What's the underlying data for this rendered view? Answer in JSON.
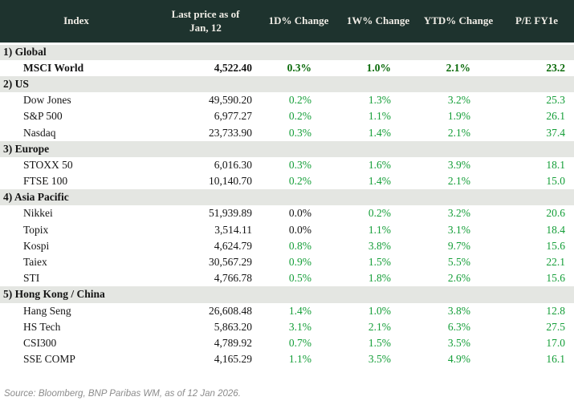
{
  "colors": {
    "header_bg": "#1e332e",
    "header_text": "#f0ede6",
    "section_bg": "#e4e6e2",
    "positive": "#149e38",
    "positive_bold": "#0a6a0a",
    "neutral": "#141414",
    "source_text": "#8c8c8c"
  },
  "chart_data": {
    "type": "table",
    "columns": [
      "Index",
      "Last price as of\nJan, 12",
      "1D% Change",
      "1W% Change",
      "YTD% Change",
      "P/E FY1e"
    ],
    "sections": [
      {
        "label": "1) Global",
        "rows": [
          {
            "index": "MSCI World",
            "last_price": "4,522.40",
            "d1_change": "0.3%",
            "w1_change": "1.0%",
            "ytd_change": "2.1%",
            "pe_fy1e": "23.2",
            "emphasis": true,
            "neutral_cells": []
          }
        ]
      },
      {
        "label": "2) US",
        "rows": [
          {
            "index": "Dow Jones",
            "last_price": "49,590.20",
            "d1_change": "0.2%",
            "w1_change": "1.3%",
            "ytd_change": "3.2%",
            "pe_fy1e": "25.3",
            "emphasis": false,
            "neutral_cells": []
          },
          {
            "index": "S&P 500",
            "last_price": "6,977.27",
            "d1_change": "0.2%",
            "w1_change": "1.1%",
            "ytd_change": "1.9%",
            "pe_fy1e": "26.1",
            "emphasis": false,
            "neutral_cells": []
          },
          {
            "index": "Nasdaq",
            "last_price": "23,733.90",
            "d1_change": "0.3%",
            "w1_change": "1.4%",
            "ytd_change": "2.1%",
            "pe_fy1e": "37.4",
            "emphasis": false,
            "neutral_cells": []
          }
        ]
      },
      {
        "label": "3) Europe",
        "rows": [
          {
            "index": "STOXX 50",
            "last_price": "6,016.30",
            "d1_change": "0.3%",
            "w1_change": "1.6%",
            "ytd_change": "3.9%",
            "pe_fy1e": "18.1",
            "emphasis": false,
            "neutral_cells": []
          },
          {
            "index": "FTSE 100",
            "last_price": "10,140.70",
            "d1_change": "0.2%",
            "w1_change": "1.4%",
            "ytd_change": "2.1%",
            "pe_fy1e": "15.0",
            "emphasis": false,
            "neutral_cells": []
          }
        ]
      },
      {
        "label": "4) Asia Pacific",
        "rows": [
          {
            "index": "Nikkei",
            "last_price": "51,939.89",
            "d1_change": "0.0%",
            "w1_change": "0.2%",
            "ytd_change": "3.2%",
            "pe_fy1e": "20.6",
            "emphasis": false,
            "neutral_cells": [
              "d1_change"
            ]
          },
          {
            "index": "Topix",
            "last_price": "3,514.11",
            "d1_change": "0.0%",
            "w1_change": "1.1%",
            "ytd_change": "3.1%",
            "pe_fy1e": "18.4",
            "emphasis": false,
            "neutral_cells": [
              "d1_change"
            ]
          },
          {
            "index": "Kospi",
            "last_price": "4,624.79",
            "d1_change": "0.8%",
            "w1_change": "3.8%",
            "ytd_change": "9.7%",
            "pe_fy1e": "15.6",
            "emphasis": false,
            "neutral_cells": []
          },
          {
            "index": "Taiex",
            "last_price": "30,567.29",
            "d1_change": "0.9%",
            "w1_change": "1.5%",
            "ytd_change": "5.5%",
            "pe_fy1e": "22.1",
            "emphasis": false,
            "neutral_cells": []
          },
          {
            "index": "STI",
            "last_price": "4,766.78",
            "d1_change": "0.5%",
            "w1_change": "1.8%",
            "ytd_change": "2.6%",
            "pe_fy1e": "15.6",
            "emphasis": false,
            "neutral_cells": []
          }
        ]
      },
      {
        "label": "5) Hong Kong / China",
        "rows": [
          {
            "index": "Hang Seng",
            "last_price": "26,608.48",
            "d1_change": "1.4%",
            "w1_change": "1.0%",
            "ytd_change": "3.8%",
            "pe_fy1e": "12.8",
            "emphasis": false,
            "neutral_cells": []
          },
          {
            "index": "HS Tech",
            "last_price": "5,863.20",
            "d1_change": "3.1%",
            "w1_change": "2.1%",
            "ytd_change": "6.3%",
            "pe_fy1e": "27.5",
            "emphasis": false,
            "neutral_cells": []
          },
          {
            "index": "CSI300",
            "last_price": "4,789.92",
            "d1_change": "0.7%",
            "w1_change": "1.5%",
            "ytd_change": "3.5%",
            "pe_fy1e": "17.0",
            "emphasis": false,
            "neutral_cells": []
          },
          {
            "index": "SSE COMP",
            "last_price": "4,165.29",
            "d1_change": "1.1%",
            "w1_change": "3.5%",
            "ytd_change": "4.9%",
            "pe_fy1e": "16.1",
            "emphasis": false,
            "neutral_cells": []
          }
        ]
      }
    ]
  },
  "footer": {
    "source": "Source: Bloomberg, BNP Paribas WM, as of 12 Jan 2026."
  }
}
